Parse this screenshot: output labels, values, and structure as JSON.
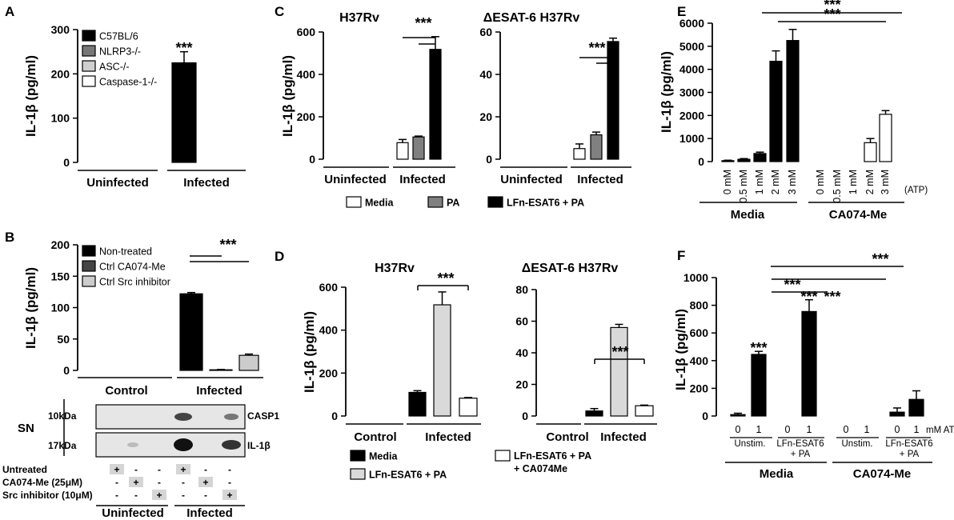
{
  "chart_data": [
    {
      "panel": "A",
      "type": "bar",
      "ylabel": "IL-1β (pg/ml)",
      "yticks": [
        0,
        100,
        200,
        300
      ],
      "ylim": [
        0,
        300
      ],
      "legend": [
        "C57BL/6",
        "NLRP3-/-",
        "ASC-/-",
        "Caspase-1-/-"
      ],
      "series_colors": [
        "#000000",
        "#777777",
        "#cfcfcf",
        "#ffffff"
      ],
      "groups": [
        {
          "label": "Uninfected",
          "values": [
            0,
            0,
            0,
            0
          ],
          "errors": [
            0,
            0,
            0,
            0
          ]
        },
        {
          "label": "Infected",
          "values": [
            225,
            0,
            0,
            0
          ],
          "errors": [
            25,
            0,
            0,
            0
          ]
        }
      ],
      "annotations": [
        "***"
      ]
    },
    {
      "panel": "B",
      "type": "bar",
      "ylabel": "IL-1β (pg/ml)",
      "yticks": [
        0,
        50,
        100,
        150,
        200
      ],
      "legend": [
        "Non-treated",
        "Ctrl CA074-Me",
        "Ctrl Src inhibitor"
      ],
      "series_colors": [
        "#000000",
        "#444444",
        "#cccccc"
      ],
      "groups": [
        {
          "label": "Control",
          "values": [
            0,
            0,
            0
          ],
          "errors": [
            0,
            0,
            0
          ]
        },
        {
          "label": "Infected",
          "values": [
            122,
            1,
            24
          ],
          "errors": [
            2,
            0.5,
            2
          ]
        }
      ],
      "annotations": [
        "***"
      ],
      "blot": {
        "side_label": "SN",
        "rows": [
          {
            "mw": "10kDa",
            "name": "CASP1"
          },
          {
            "mw": "17kDa",
            "name": "IL-1β"
          }
        ],
        "treatments": [
          {
            "label": "Untreated",
            "marks": [
              "+",
              "-",
              "-",
              "+",
              "-",
              "-"
            ]
          },
          {
            "label": "CA074-Me (25μM)",
            "marks": [
              "-",
              "+",
              "-",
              "-",
              "+",
              "-"
            ]
          },
          {
            "label": "Src inhibitor (10μM)",
            "marks": [
              "-",
              "-",
              "+",
              "-",
              "-",
              "+"
            ]
          }
        ],
        "groups": [
          "Uninfected",
          "Infected"
        ]
      }
    },
    {
      "panel": "C",
      "type": "bar",
      "title": "H37Rv",
      "ylabel": "IL-1β (pg/ml)",
      "yticks": [
        0,
        200,
        400,
        600
      ],
      "ylim": [
        0,
        600
      ],
      "groups": [
        {
          "label": "Uninfected",
          "values": [
            0,
            0,
            0
          ],
          "errors": [
            0,
            0,
            0
          ]
        },
        {
          "label": "Infected",
          "values": [
            78,
            105,
            518
          ],
          "errors": [
            15,
            4,
            60
          ]
        }
      ],
      "annotations": [
        "***"
      ]
    },
    {
      "panel": "C2",
      "type": "bar",
      "title": "ΔESAT-6 H37Rv",
      "yticks": [
        0,
        20,
        40,
        60
      ],
      "ylim": [
        0,
        60
      ],
      "groups": [
        {
          "label": "Uninfected",
          "values": [
            0,
            0,
            0
          ],
          "errors": [
            0,
            0,
            0
          ]
        },
        {
          "label": "Infected",
          "values": [
            5,
            11.5,
            55.5
          ],
          "errors": [
            2.2,
            1.3,
            1.6
          ]
        }
      ],
      "annotations": [
        "***"
      ],
      "legend": [
        "Media",
        "PA",
        "LFn-ESAT6 + PA"
      ],
      "series_colors": [
        "#ffffff",
        "#808080",
        "#000000"
      ]
    },
    {
      "panel": "D",
      "type": "bar",
      "title": "H37Rv",
      "ylabel": "IL-1β (pg/ml)",
      "yticks": [
        0,
        200,
        400,
        600
      ],
      "ylim": [
        0,
        600
      ],
      "groups": [
        {
          "label": "Control",
          "values": [
            0,
            0,
            0
          ],
          "errors": [
            0,
            0,
            0
          ]
        },
        {
          "label": "Infected",
          "values": [
            110,
            518,
            83
          ],
          "errors": [
            8,
            60,
            3
          ]
        }
      ],
      "annotations": [
        "***"
      ]
    },
    {
      "panel": "D2",
      "type": "bar",
      "title": "ΔESAT-6 H37Rv",
      "yticks": [
        0,
        20,
        40,
        60,
        80
      ],
      "ylim": [
        0,
        80
      ],
      "groups": [
        {
          "label": "Control",
          "values": [
            0,
            0,
            0
          ],
          "errors": [
            0,
            0,
            0
          ]
        },
        {
          "label": "Infected",
          "values": [
            3.2,
            56,
            6.5
          ],
          "errors": [
            1.5,
            2,
            0.4
          ]
        }
      ],
      "annotations": [
        "***"
      ],
      "legend": [
        "Media",
        "LFn-ESAT6 + PA",
        "LFn-ESAT6 + PA + CA074Me"
      ],
      "series_colors": [
        "#000000",
        "#d9d9d9",
        "#ffffff"
      ]
    },
    {
      "panel": "E",
      "type": "bar",
      "ylabel": "IL-1β (pg/ml)",
      "yticks": [
        0,
        1000,
        2000,
        3000,
        4000,
        5000,
        6000
      ],
      "ylim": [
        0,
        6000
      ],
      "categories": [
        "0 mM",
        "0.5 mM",
        "1 mM",
        "2 mM",
        "3 mM",
        "0 mM",
        "0.5 mM",
        "1 mM",
        "2 mM",
        "3 mM"
      ],
      "values": [
        40,
        100,
        350,
        4350,
        5250,
        0,
        0,
        0,
        820,
        2050
      ],
      "errors": [
        20,
        30,
        60,
        450,
        480,
        0,
        0,
        0,
        180,
        160
      ],
      "bar_colors": [
        "#000000",
        "#000000",
        "#000000",
        "#000000",
        "#000000",
        "#ffffff",
        "#ffffff",
        "#ffffff",
        "#ffffff",
        "#ffffff"
      ],
      "unit_note": "(ATP)",
      "groups": [
        "Media",
        "CA074-Me"
      ],
      "annotations": [
        "***",
        "***"
      ]
    },
    {
      "panel": "F",
      "type": "bar",
      "ylabel": "IL-1β (pg/ml)",
      "yticks": [
        0,
        200,
        400,
        600,
        800,
        1000
      ],
      "ylim": [
        0,
        1000
      ],
      "categories": [
        "0",
        "1",
        "0",
        "1",
        "0",
        "1",
        "0",
        "1"
      ],
      "values": [
        10,
        445,
        0,
        755,
        0,
        0,
        28,
        120
      ],
      "errors": [
        10,
        22,
        0,
        85,
        0,
        0,
        30,
        62
      ],
      "subgroups": [
        "Unstim.",
        "LFn-ESAT6 + PA",
        "Unstim.",
        "LFn-ESAT6 + PA"
      ],
      "groups": [
        "Media",
        "CA074-Me"
      ],
      "unit_note": "mM ATP",
      "annotations": [
        "***",
        "***",
        "***",
        "***",
        "***"
      ]
    }
  ]
}
